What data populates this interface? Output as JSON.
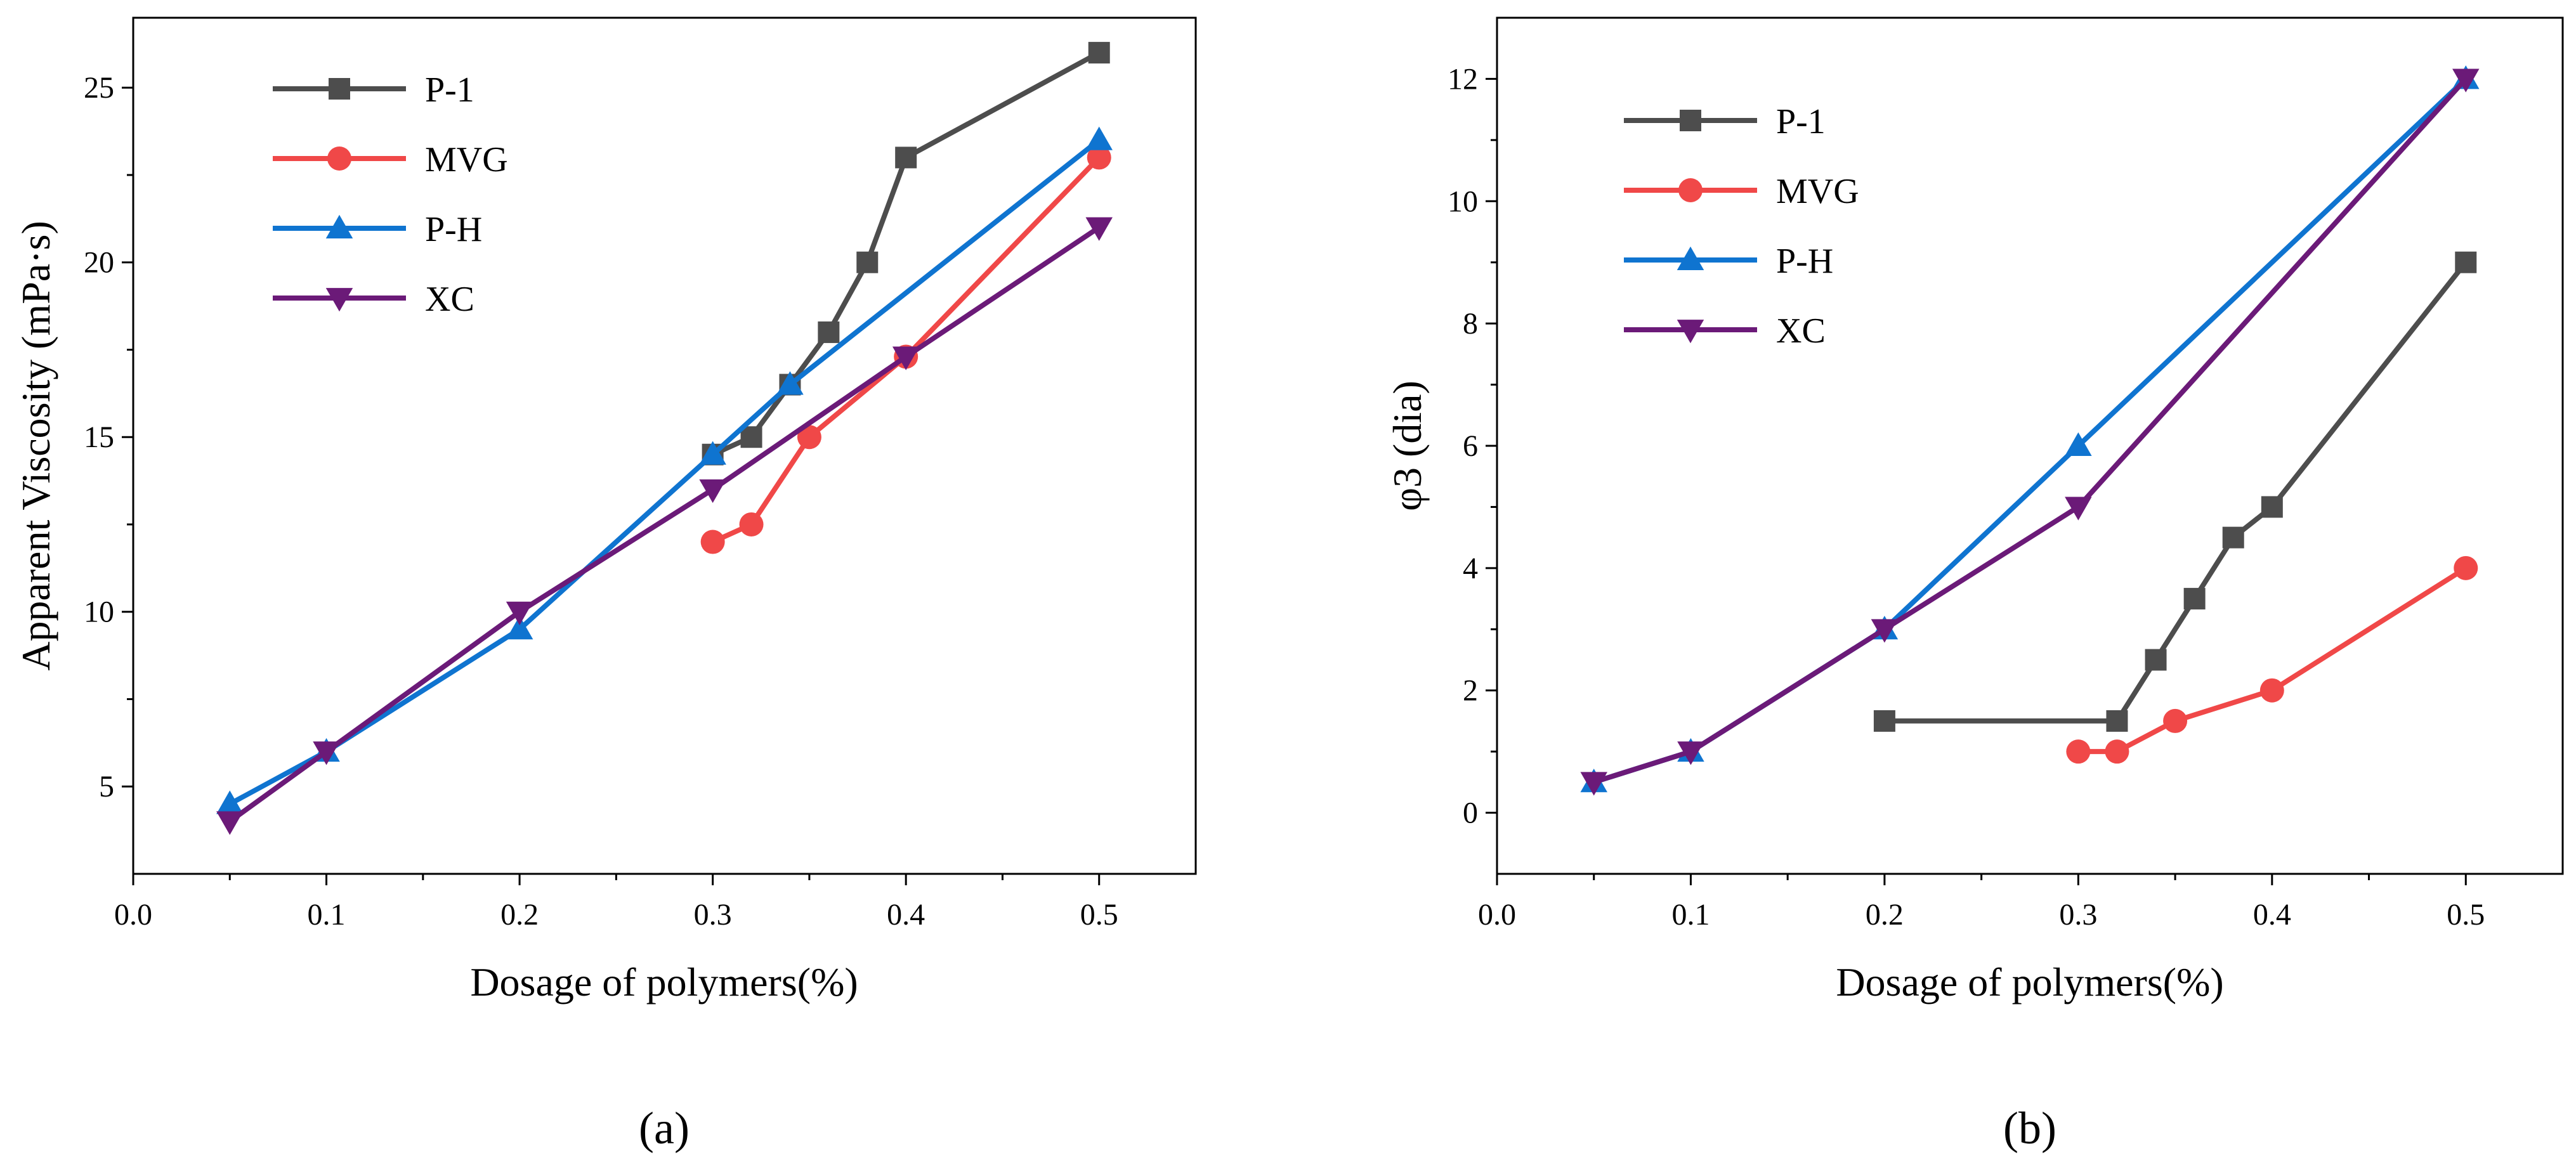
{
  "figure": {
    "caption_a": "(a)",
    "caption_b": "(b)"
  },
  "colors": {
    "p1": "#4d4d4d",
    "mvg": "#f04848",
    "ph": "#0f74d0",
    "xc": "#6b1a78",
    "axis": "#000000"
  },
  "chart_data": [
    {
      "id": "a",
      "type": "line",
      "xlabel": "Dosage of polymers(%)",
      "ylabel": "Apparent Viscosity (mPa·s)",
      "xlim": [
        0.0,
        0.55
      ],
      "ylim": [
        2.5,
        27.0
      ],
      "xticks": [
        0.0,
        0.1,
        0.2,
        0.3,
        0.4,
        0.5
      ],
      "xtick_labels": [
        "0.0",
        "0.1",
        "0.2",
        "0.3",
        "0.4",
        "0.5"
      ],
      "yticks": [
        5,
        10,
        15,
        20,
        25
      ],
      "ytick_labels": [
        "5",
        "10",
        "15",
        "20",
        "25"
      ],
      "legend_position": "top-left",
      "series": [
        {
          "name": "P-1",
          "color": "#4d4d4d",
          "marker": "square",
          "x": [
            0.3,
            0.32,
            0.34,
            0.36,
            0.38,
            0.4,
            0.5
          ],
          "y": [
            14.5,
            15.0,
            16.5,
            18.0,
            20.0,
            23.0,
            26.0
          ]
        },
        {
          "name": "MVG",
          "color": "#f04848",
          "marker": "circle",
          "x": [
            0.3,
            0.32,
            0.35,
            0.4,
            0.5
          ],
          "y": [
            12.0,
            12.5,
            15.0,
            17.3,
            23.0
          ]
        },
        {
          "name": "P-H",
          "color": "#0f74d0",
          "marker": "triangle-up",
          "x": [
            0.05,
            0.1,
            0.2,
            0.3,
            0.34,
            0.5
          ],
          "y": [
            4.5,
            6.0,
            9.5,
            14.5,
            16.5,
            23.5
          ]
        },
        {
          "name": "XC",
          "color": "#6b1a78",
          "marker": "triangle-down",
          "x": [
            0.05,
            0.1,
            0.2,
            0.3,
            0.4,
            0.5
          ],
          "y": [
            4.0,
            6.0,
            10.0,
            13.5,
            17.3,
            21.0
          ]
        }
      ]
    },
    {
      "id": "b",
      "type": "line",
      "xlabel": "Dosage of polymers(%)",
      "ylabel": "φ3 (dia)",
      "xlim": [
        0.0,
        0.55
      ],
      "ylim": [
        -1.0,
        13.0
      ],
      "xticks": [
        0.0,
        0.1,
        0.2,
        0.3,
        0.4,
        0.5
      ],
      "xtick_labels": [
        "0.0",
        "0.1",
        "0.2",
        "0.3",
        "0.4",
        "0.5"
      ],
      "yticks": [
        0,
        2,
        4,
        6,
        8,
        10,
        12
      ],
      "ytick_labels": [
        "0",
        "2",
        "4",
        "6",
        "8",
        "10",
        "12"
      ],
      "legend_position": "top-left",
      "series": [
        {
          "name": "P-1",
          "color": "#4d4d4d",
          "marker": "square",
          "x": [
            0.2,
            0.32,
            0.34,
            0.36,
            0.38,
            0.4,
            0.5
          ],
          "y": [
            1.5,
            1.5,
            2.5,
            3.5,
            4.5,
            5.0,
            9.0
          ]
        },
        {
          "name": "MVG",
          "color": "#f04848",
          "marker": "circle",
          "x": [
            0.3,
            0.32,
            0.35,
            0.4,
            0.5
          ],
          "y": [
            1.0,
            1.0,
            1.5,
            2.0,
            4.0
          ]
        },
        {
          "name": "P-H",
          "color": "#0f74d0",
          "marker": "triangle-up",
          "x": [
            0.05,
            0.1,
            0.2,
            0.3,
            0.5
          ],
          "y": [
            0.5,
            1.0,
            3.0,
            6.0,
            12.0
          ]
        },
        {
          "name": "XC",
          "color": "#6b1a78",
          "marker": "triangle-down",
          "x": [
            0.05,
            0.1,
            0.2,
            0.3,
            0.5
          ],
          "y": [
            0.5,
            1.0,
            3.0,
            5.0,
            12.0
          ]
        }
      ]
    }
  ]
}
